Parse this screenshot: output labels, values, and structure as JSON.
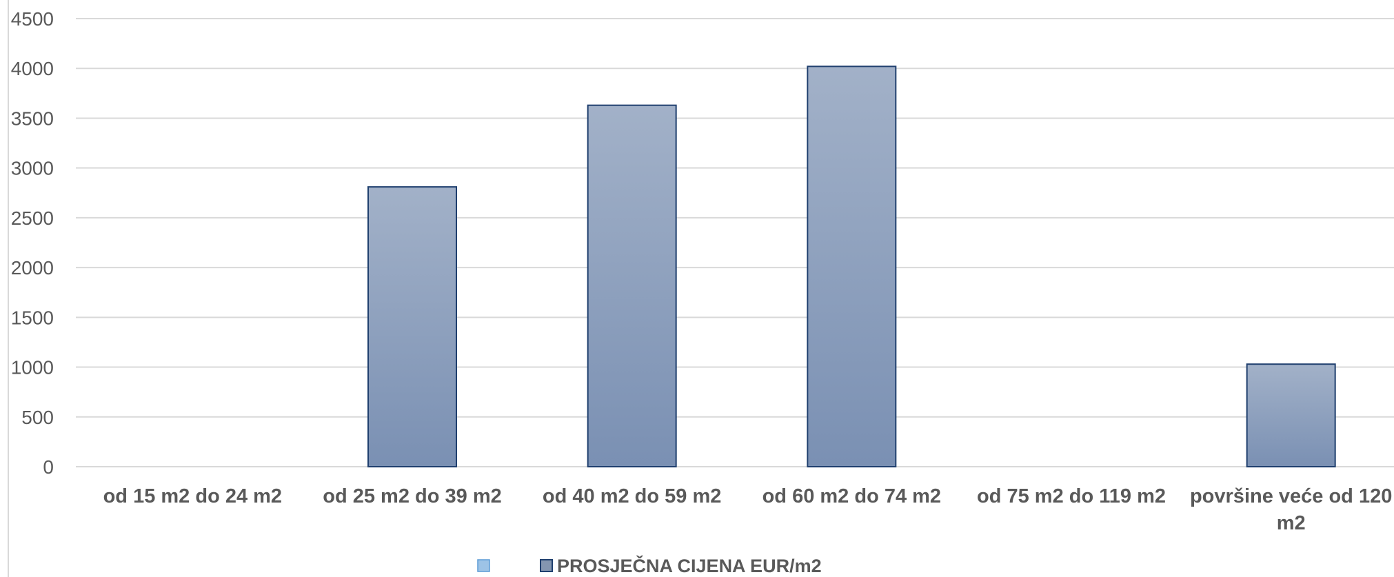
{
  "chart_data": {
    "type": "bar",
    "categories": [
      "od 15 m2 do 24 m2",
      "od 25 m2 do 39 m2",
      "od 40 m2 do 59 m2",
      "od 60 m2 do 74 m2",
      "od 75 m2 do 119 m2",
      "površine veće od 120 m2"
    ],
    "series": [
      {
        "name": "",
        "values": [
          0,
          0,
          0,
          0,
          0,
          0
        ],
        "color": "#9dc3e6"
      },
      {
        "name": "PROSJEČNA CIJENA EUR/m2",
        "values": [
          0,
          2810,
          3630,
          4020,
          0,
          1030
        ],
        "color": "#8496b0"
      }
    ],
    "ylim": [
      0,
      4500
    ],
    "yticks": [
      0,
      500,
      1000,
      1500,
      2000,
      2500,
      3000,
      3500,
      4000,
      4500
    ],
    "grid": true,
    "legend": "bottom",
    "title": "",
    "xlabel": "",
    "ylabel": ""
  }
}
